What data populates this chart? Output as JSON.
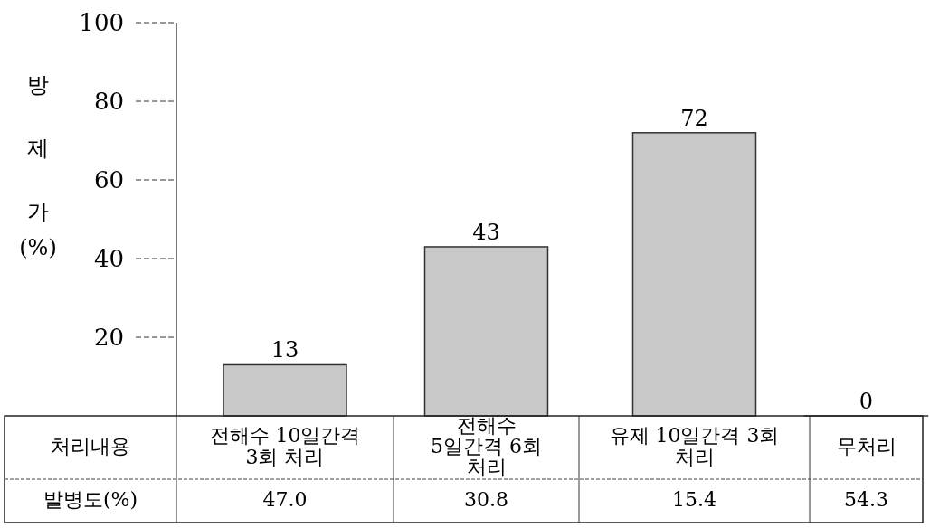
{
  "chart_data": {
    "type": "bar",
    "ylabel": "방제가(%)",
    "categories": [
      "전해수 10일간격 3회 처리",
      "전해수 5일간격 6회 처리",
      "유제 10일간격 3회 처리",
      "무처리"
    ],
    "values": [
      13,
      43,
      72,
      0
    ],
    "color": "#c8c8c8",
    "data_labels": true,
    "ylim": [
      0,
      100
    ],
    "yticks": [
      20,
      40,
      60,
      80,
      100
    ],
    "annotations": [
      "처리내용",
      "발병도(%)",
      "47.0",
      "30.8",
      "15.4",
      "54.3"
    ]
  }
}
